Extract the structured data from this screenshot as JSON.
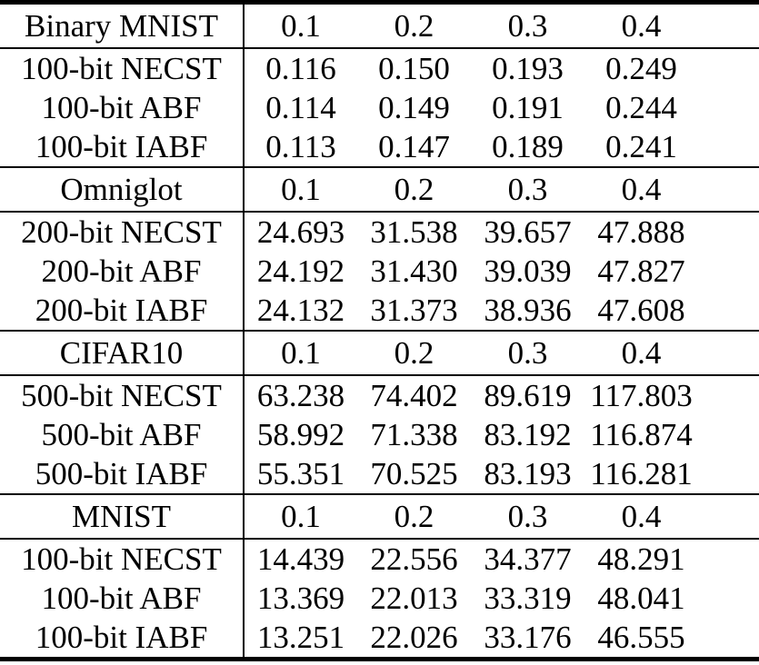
{
  "table": {
    "colors": {
      "text": "#000000",
      "background": "#ffffff",
      "rule": "#000000"
    },
    "sections": [
      {
        "dataset": "Binary MNIST",
        "columns": [
          "0.1",
          "0.2",
          "0.3",
          "0.4"
        ],
        "rows": [
          {
            "label": "100-bit NECST",
            "values": [
              "0.116",
              "0.150",
              "0.193",
              "0.249"
            ],
            "bold": [
              false,
              false,
              false,
              false
            ]
          },
          {
            "label": "100-bit ABF",
            "values": [
              "0.114",
              "0.149",
              "0.191",
              "0.244"
            ],
            "bold": [
              false,
              false,
              false,
              false
            ]
          },
          {
            "label": "100-bit IABF",
            "values": [
              "0.113",
              "0.147",
              "0.189",
              "0.241"
            ],
            "bold": [
              true,
              true,
              true,
              true
            ]
          }
        ]
      },
      {
        "dataset": "Omniglot",
        "columns": [
          "0.1",
          "0.2",
          "0.3",
          "0.4"
        ],
        "rows": [
          {
            "label": "200-bit NECST",
            "values": [
              "24.693",
              "31.538",
              "39.657",
              "47.888"
            ],
            "bold": [
              false,
              false,
              false,
              false
            ]
          },
          {
            "label": "200-bit ABF",
            "values": [
              "24.192",
              "31.430",
              "39.039",
              "47.827"
            ],
            "bold": [
              false,
              false,
              false,
              false
            ]
          },
          {
            "label": "200-bit IABF",
            "values": [
              "24.132",
              "31.373",
              "38.936",
              "47.608"
            ],
            "bold": [
              true,
              true,
              true,
              true
            ]
          }
        ]
      },
      {
        "dataset": "CIFAR10",
        "columns": [
          "0.1",
          "0.2",
          "0.3",
          "0.4"
        ],
        "rows": [
          {
            "label": "500-bit NECST",
            "values": [
              "63.238",
              "74.402",
              "89.619",
              "117.803"
            ],
            "bold": [
              false,
              false,
              false,
              false
            ]
          },
          {
            "label": "500-bit ABF",
            "values": [
              "58.992",
              "71.338",
              "83.192",
              "116.874"
            ],
            "bold": [
              false,
              false,
              true,
              false
            ]
          },
          {
            "label": "500-bit IABF",
            "values": [
              "55.351",
              "70.525",
              "83.193",
              "116.281"
            ],
            "bold": [
              true,
              true,
              false,
              true
            ]
          }
        ]
      },
      {
        "dataset": "MNIST",
        "columns": [
          "0.1",
          "0.2",
          "0.3",
          "0.4"
        ],
        "rows": [
          {
            "label": "100-bit NECST",
            "values": [
              "14.439",
              "22.556",
              "34.377",
              "48.291"
            ],
            "bold": [
              false,
              false,
              false,
              false
            ]
          },
          {
            "label": "100-bit ABF",
            "values": [
              "13.369",
              "22.013",
              "33.319",
              "48.041"
            ],
            "bold": [
              false,
              true,
              false,
              false
            ]
          },
          {
            "label": "100-bit IABF",
            "values": [
              "13.251",
              "22.026",
              "33.176",
              "46.555"
            ],
            "bold": [
              true,
              false,
              true,
              true
            ]
          }
        ]
      }
    ]
  }
}
